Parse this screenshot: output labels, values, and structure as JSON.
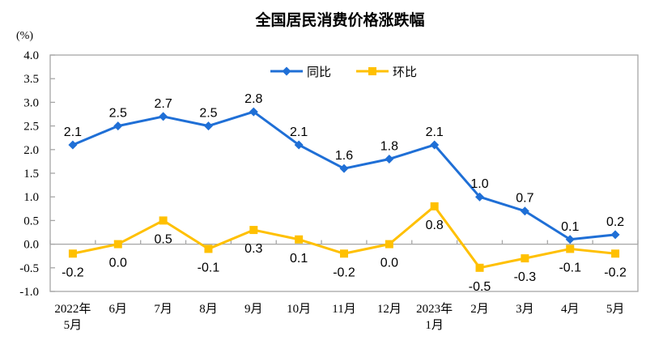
{
  "chart_data": {
    "type": "line",
    "title": "全国居民消费价格涨跌幅",
    "ylabel": "(%)",
    "xlabel": "",
    "ylim": [
      -1.0,
      4.0
    ],
    "ytick_step": 0.5,
    "grid": false,
    "legend_position": "top-center-inside",
    "axis_color": "#A6A6A6",
    "text_color": "#000000",
    "data_label_color": "#000000",
    "categories": [
      "2022年\n5月",
      "6月",
      "7月",
      "8月",
      "9月",
      "10月",
      "11月",
      "12月",
      "2023年\n1月",
      "2月",
      "3月",
      "4月",
      "5月"
    ],
    "series": [
      {
        "name": "同比",
        "color": "#1F6FD6",
        "marker": "diamond",
        "label_position": "above",
        "values": [
          2.1,
          2.5,
          2.7,
          2.5,
          2.8,
          2.1,
          1.6,
          1.8,
          2.1,
          1.0,
          0.7,
          0.1,
          0.2
        ]
      },
      {
        "name": "环比",
        "color": "#FFC000",
        "marker": "square",
        "label_position": "below",
        "values": [
          -0.2,
          0.0,
          0.5,
          -0.1,
          0.3,
          0.1,
          -0.2,
          0.0,
          0.8,
          -0.5,
          -0.3,
          -0.1,
          -0.2
        ]
      }
    ]
  }
}
